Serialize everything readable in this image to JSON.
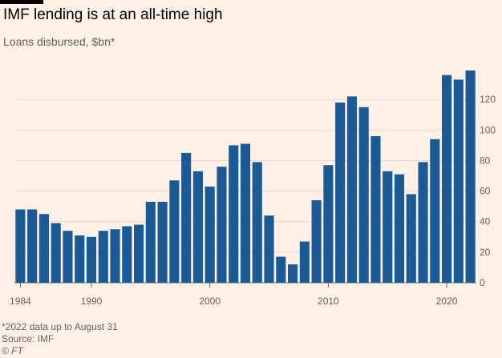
{
  "chart_data": {
    "type": "bar",
    "title": "IMF lending is at an all-time high",
    "subtitle": "Loans disbursed, $bn*",
    "x": [
      1984,
      1985,
      1986,
      1987,
      1988,
      1989,
      1990,
      1991,
      1992,
      1993,
      1994,
      1995,
      1996,
      1997,
      1998,
      1999,
      2000,
      2001,
      2002,
      2003,
      2004,
      2005,
      2006,
      2007,
      2008,
      2009,
      2010,
      2011,
      2012,
      2013,
      2014,
      2015,
      2016,
      2017,
      2018,
      2019,
      2020,
      2021,
      2022
    ],
    "values": [
      48,
      48,
      45,
      39,
      34,
      31,
      30,
      34,
      35,
      37,
      38,
      53,
      53,
      67,
      85,
      73,
      63,
      76,
      90,
      91,
      79,
      44,
      17,
      12,
      27,
      54,
      77,
      118,
      122,
      115,
      96,
      73,
      71,
      58,
      79,
      94,
      136,
      133,
      139
    ],
    "x_ticks": [
      1984,
      1990,
      2000,
      2010,
      2020
    ],
    "y_ticks": [
      0,
      20,
      40,
      60,
      80,
      100,
      120
    ],
    "ylim": [
      0,
      139
    ],
    "y_axis_position": "right",
    "grid": true,
    "bar_color": "#1a5a96",
    "grid_color": "#e6d9ce"
  },
  "footer": {
    "note": "*2022 data up to August 31",
    "source": "Source: IMF",
    "credit": "© FT"
  }
}
